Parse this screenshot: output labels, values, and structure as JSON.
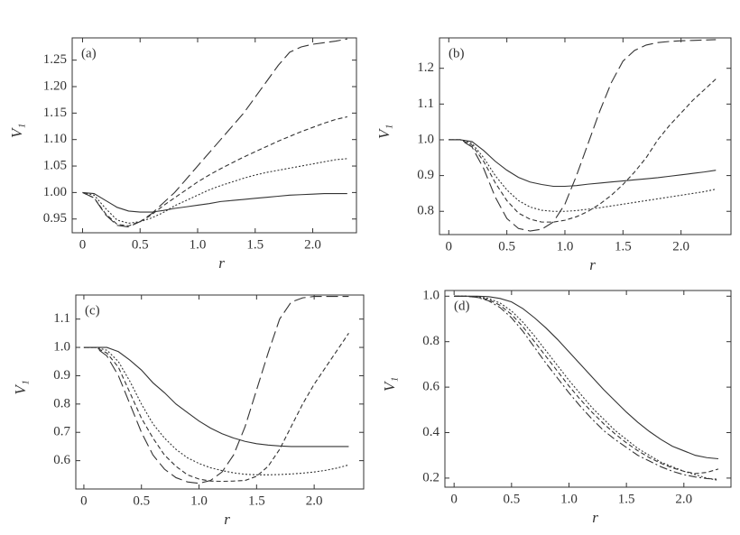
{
  "chart_data": [
    {
      "type": "line",
      "panel_label": "(a)",
      "xlabel": "r",
      "ylabel": "V₁",
      "x": [
        0,
        0.1,
        0.2,
        0.3,
        0.4,
        0.5,
        0.6,
        0.7,
        0.8,
        0.9,
        1.0,
        1.1,
        1.2,
        1.3,
        1.4,
        1.5,
        1.6,
        1.7,
        1.8,
        1.9,
        2.0,
        2.1,
        2.2,
        2.3
      ],
      "xlim": [
        -0.09,
        2.38
      ],
      "ylim": [
        0.924,
        1.292
      ],
      "xticks": [
        0,
        0.5,
        {
          "value": 1,
          "label": "1.0"
        },
        1.5,
        {
          "value": 2,
          "label": "2.0"
        }
      ],
      "yticks": [
        0.95,
        {
          "value": 1,
          "label": "1.00"
        },
        1.05,
        {
          "value": 1.1,
          "label": "1.10"
        },
        1.15,
        {
          "value": 1.2,
          "label": "1.20"
        },
        1.25
      ],
      "series": [
        {
          "color": "#333333",
          "dash": "solid",
          "values": [
            1.0,
            0.998,
            0.985,
            0.972,
            0.965,
            0.963,
            0.963,
            0.966,
            0.97,
            0.973,
            0.976,
            0.979,
            0.983,
            0.985,
            0.987,
            0.989,
            0.991,
            0.993,
            0.995,
            0.996,
            0.997,
            0.998,
            0.998,
            0.998
          ]
        },
        {
          "color": "#333333",
          "dash": "dotted",
          "values": [
            1.0,
            0.995,
            0.97,
            0.948,
            0.942,
            0.945,
            0.952,
            0.962,
            0.975,
            0.985,
            0.995,
            1.005,
            1.013,
            1.02,
            1.027,
            1.033,
            1.038,
            1.042,
            1.046,
            1.05,
            1.054,
            1.058,
            1.062,
            1.064
          ]
        },
        {
          "color": "#333333",
          "dash": "dashed",
          "values": [
            1.0,
            0.99,
            0.96,
            0.94,
            0.937,
            0.945,
            0.958,
            0.975,
            0.99,
            1.005,
            1.02,
            1.033,
            1.045,
            1.056,
            1.067,
            1.077,
            1.087,
            1.097,
            1.106,
            1.115,
            1.123,
            1.131,
            1.138,
            1.143
          ]
        },
        {
          "color": "#333333",
          "dash": "long",
          "values": [
            1.0,
            0.99,
            0.958,
            0.938,
            0.935,
            0.945,
            0.96,
            0.98,
            1.0,
            1.025,
            1.05,
            1.075,
            1.1,
            1.125,
            1.15,
            1.18,
            1.21,
            1.24,
            1.265,
            1.275,
            1.28,
            1.283,
            1.286,
            1.29
          ]
        }
      ]
    },
    {
      "type": "line",
      "panel_label": "(b)",
      "xlabel": "r",
      "ylabel": "V₁",
      "x": [
        0,
        0.1,
        0.2,
        0.3,
        0.4,
        0.5,
        0.6,
        0.7,
        0.8,
        0.9,
        1.0,
        1.1,
        1.2,
        1.3,
        1.4,
        1.5,
        1.6,
        1.7,
        1.8,
        1.9,
        2.0,
        2.1,
        2.2,
        2.3
      ],
      "xlim": [
        -0.08,
        2.43
      ],
      "ylim": [
        0.735,
        1.285
      ],
      "xticks": [
        0,
        0.5,
        {
          "value": 1,
          "label": "1.0"
        },
        1.5,
        {
          "value": 2,
          "label": "2.0"
        }
      ],
      "yticks": [
        0.8,
        0.9,
        {
          "value": 1,
          "label": "1.0"
        },
        1.1,
        1.2
      ],
      "series": [
        {
          "color": "#333333",
          "dash": "solid",
          "values": [
            1.0,
            1.0,
            0.995,
            0.97,
            0.94,
            0.915,
            0.895,
            0.882,
            0.875,
            0.87,
            0.87,
            0.872,
            0.876,
            0.879,
            0.882,
            0.885,
            0.888,
            0.891,
            0.894,
            0.898,
            0.902,
            0.906,
            0.91,
            0.915
          ]
        },
        {
          "color": "#333333",
          "dash": "dotted",
          "values": [
            1.0,
            1.0,
            0.99,
            0.95,
            0.9,
            0.86,
            0.83,
            0.812,
            0.803,
            0.8,
            0.8,
            0.802,
            0.806,
            0.81,
            0.815,
            0.82,
            0.825,
            0.83,
            0.835,
            0.84,
            0.845,
            0.85,
            0.855,
            0.862
          ]
        },
        {
          "color": "#333333",
          "dash": "dashed",
          "values": [
            1.0,
            1.0,
            0.985,
            0.94,
            0.88,
            0.83,
            0.795,
            0.778,
            0.77,
            0.77,
            0.775,
            0.785,
            0.8,
            0.82,
            0.845,
            0.875,
            0.91,
            0.95,
            1.0,
            1.04,
            1.075,
            1.11,
            1.14,
            1.17
          ]
        },
        {
          "color": "#333333",
          "dash": "long",
          "values": [
            1.0,
            1.0,
            0.98,
            0.92,
            0.84,
            0.78,
            0.752,
            0.745,
            0.75,
            0.77,
            0.82,
            0.9,
            0.99,
            1.08,
            1.16,
            1.22,
            1.25,
            1.265,
            1.272,
            1.275,
            1.277,
            1.278,
            1.279,
            1.28
          ]
        }
      ]
    },
    {
      "type": "line",
      "panel_label": "(c)",
      "xlabel": "r",
      "ylabel": "V₁",
      "x": [
        0,
        0.1,
        0.2,
        0.3,
        0.4,
        0.5,
        0.6,
        0.7,
        0.8,
        0.9,
        1.0,
        1.1,
        1.2,
        1.3,
        1.4,
        1.5,
        1.6,
        1.7,
        1.8,
        1.9,
        2.0,
        2.1,
        2.2,
        2.3
      ],
      "xlim": [
        -0.07,
        2.43
      ],
      "ylim": [
        0.5,
        1.185
      ],
      "xticks": [
        0,
        0.5,
        {
          "value": 1,
          "label": "1.0"
        },
        1.5,
        {
          "value": 2,
          "label": "2.0"
        }
      ],
      "yticks": [
        0.6,
        0.7,
        0.8,
        0.9,
        {
          "value": 1,
          "label": "1.0"
        },
        1.1
      ],
      "series": [
        {
          "color": "#333333",
          "dash": "solid",
          "values": [
            1.0,
            1.0,
            1.0,
            0.985,
            0.955,
            0.92,
            0.875,
            0.84,
            0.8,
            0.77,
            0.74,
            0.715,
            0.695,
            0.68,
            0.668,
            0.66,
            0.655,
            0.652,
            0.65,
            0.65,
            0.65,
            0.65,
            0.65,
            0.65
          ]
        },
        {
          "color": "#333333",
          "dash": "dotted",
          "values": [
            1.0,
            1.0,
            0.99,
            0.95,
            0.88,
            0.8,
            0.73,
            0.68,
            0.64,
            0.61,
            0.59,
            0.575,
            0.565,
            0.557,
            0.552,
            0.55,
            0.55,
            0.551,
            0.553,
            0.556,
            0.56,
            0.566,
            0.574,
            0.585
          ]
        },
        {
          "color": "#333333",
          "dash": "dashed",
          "values": [
            1.0,
            1.0,
            0.98,
            0.93,
            0.84,
            0.75,
            0.68,
            0.62,
            0.58,
            0.55,
            0.535,
            0.528,
            0.527,
            0.528,
            0.53,
            0.545,
            0.58,
            0.64,
            0.72,
            0.8,
            0.87,
            0.93,
            0.99,
            1.05
          ]
        },
        {
          "color": "#333333",
          "dash": "long",
          "values": [
            1.0,
            1.0,
            0.97,
            0.9,
            0.8,
            0.7,
            0.62,
            0.57,
            0.54,
            0.525,
            0.52,
            0.53,
            0.56,
            0.62,
            0.72,
            0.85,
            0.98,
            1.1,
            1.16,
            1.175,
            1.18,
            1.18,
            1.18,
            1.18
          ]
        }
      ]
    },
    {
      "type": "line",
      "panel_label": "(d)",
      "xlabel": "r",
      "ylabel": "V₁",
      "x": [
        0,
        0.1,
        0.2,
        0.3,
        0.4,
        0.5,
        0.6,
        0.7,
        0.8,
        0.9,
        1.0,
        1.1,
        1.2,
        1.3,
        1.4,
        1.5,
        1.6,
        1.7,
        1.8,
        1.9,
        2.0,
        2.1,
        2.2,
        2.3
      ],
      "xlim": [
        -0.08,
        2.41
      ],
      "ylim": [
        0.16,
        1.025
      ],
      "xticks": [
        0,
        0.5,
        {
          "value": 1,
          "label": "1.0"
        },
        1.5,
        {
          "value": 2,
          "label": "2.0"
        }
      ],
      "yticks": [
        0.2,
        0.4,
        0.6,
        0.8,
        {
          "value": 1,
          "label": "1.0"
        }
      ],
      "series": [
        {
          "color": "#333333",
          "dash": "solid",
          "values": [
            1.0,
            1.0,
            1.0,
            0.998,
            0.99,
            0.975,
            0.945,
            0.905,
            0.86,
            0.81,
            0.755,
            0.7,
            0.645,
            0.59,
            0.54,
            0.49,
            0.445,
            0.405,
            0.37,
            0.34,
            0.32,
            0.3,
            0.29,
            0.285
          ]
        },
        {
          "color": "#333333",
          "dash": "dotted",
          "values": [
            1.0,
            1.0,
            0.998,
            0.99,
            0.97,
            0.935,
            0.885,
            0.825,
            0.76,
            0.695,
            0.63,
            0.57,
            0.51,
            0.46,
            0.41,
            0.37,
            0.33,
            0.3,
            0.27,
            0.25,
            0.23,
            0.215,
            0.2,
            0.19
          ]
        },
        {
          "color": "#333333",
          "dash": "dashed",
          "values": [
            1.0,
            1.0,
            0.995,
            0.985,
            0.96,
            0.92,
            0.865,
            0.8,
            0.735,
            0.67,
            0.605,
            0.545,
            0.49,
            0.44,
            0.395,
            0.355,
            0.32,
            0.29,
            0.265,
            0.245,
            0.23,
            0.22,
            0.225,
            0.24
          ]
        },
        {
          "color": "#333333",
          "dash": "dashdot",
          "values": [
            1.0,
            1.0,
            0.995,
            0.98,
            0.95,
            0.905,
            0.845,
            0.775,
            0.705,
            0.64,
            0.575,
            0.515,
            0.46,
            0.41,
            0.37,
            0.335,
            0.3,
            0.275,
            0.25,
            0.23,
            0.215,
            0.205,
            0.198,
            0.195
          ]
        }
      ]
    }
  ]
}
